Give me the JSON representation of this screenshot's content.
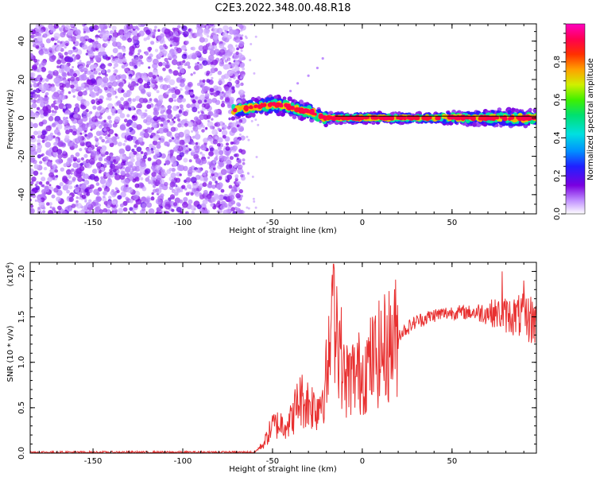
{
  "title": "C2E3.2022.348.00.48.R18",
  "chart_data": [
    {
      "type": "heatmap",
      "title": "C2E3.2022.348.00.48.R18",
      "xlabel": "Height of straight line (km)",
      "ylabel": "Frequency (Hz)",
      "xlim": [
        -185,
        97
      ],
      "ylim": [
        -50,
        49
      ],
      "xticks": [
        -150,
        -100,
        -50,
        0,
        50
      ],
      "yticks": [
        -40,
        -20,
        0,
        20,
        40
      ],
      "noise_region_x": [
        -185,
        -70
      ],
      "signal_track": [
        {
          "x": -72,
          "y": 4
        },
        {
          "x": -65,
          "y": 5
        },
        {
          "x": -58,
          "y": 6
        },
        {
          "x": -50,
          "y": 7
        },
        {
          "x": -42,
          "y": 6
        },
        {
          "x": -35,
          "y": 4
        },
        {
          "x": -28,
          "y": 3
        },
        {
          "x": -22,
          "y": 0
        },
        {
          "x": -15,
          "y": 0
        },
        {
          "x": 0,
          "y": 0
        },
        {
          "x": 25,
          "y": 0
        },
        {
          "x": 50,
          "y": 0
        },
        {
          "x": 75,
          "y": 0
        },
        {
          "x": 97,
          "y": 0
        }
      ],
      "colorbar": {
        "label": "Normalized spectral amplitude",
        "range": [
          0,
          1
        ],
        "ticks": [
          "0.0",
          "0.2",
          "0.4",
          "0.6",
          "0.8"
        ]
      }
    },
    {
      "type": "line",
      "xlabel": "Height of straight line (km)",
      "ylabel": "SNR (10 * v/v)",
      "scale_label": "(x10",
      "scale_exp": "4",
      "scale_close": ")",
      "xlim": [
        -185,
        97
      ],
      "ylim": [
        0,
        2.1
      ],
      "xticks": [
        -150,
        -100,
        -50,
        0,
        50
      ],
      "yticks": [
        "0.0",
        "0.5",
        "1.0",
        "1.5",
        "2.0"
      ],
      "color": "#e83030",
      "envelope": [
        {
          "x": -185,
          "y": 0.01
        },
        {
          "x": -60,
          "y": 0.01
        },
        {
          "x": -55,
          "y": 0.1
        },
        {
          "x": -50,
          "y": 0.3
        },
        {
          "x": -40,
          "y": 0.35
        },
        {
          "x": -35,
          "y": 0.6
        },
        {
          "x": -25,
          "y": 0.5
        },
        {
          "x": -20,
          "y": 0.8
        },
        {
          "x": -15,
          "y": 1.6
        },
        {
          "x": -10,
          "y": 0.8
        },
        {
          "x": 0,
          "y": 0.9
        },
        {
          "x": 10,
          "y": 1.1
        },
        {
          "x": 20,
          "y": 1.3
        },
        {
          "x": 30,
          "y": 1.45
        },
        {
          "x": 40,
          "y": 1.52
        },
        {
          "x": 50,
          "y": 1.55
        },
        {
          "x": 60,
          "y": 1.55
        },
        {
          "x": 70,
          "y": 1.55
        },
        {
          "x": 80,
          "y": 1.52
        },
        {
          "x": 90,
          "y": 1.5
        },
        {
          "x": 97,
          "y": 1.45
        }
      ],
      "peaks": [
        {
          "x": -16,
          "y": 2.08
        },
        {
          "x": -20,
          "y": 1.25
        },
        {
          "x": 78,
          "y": 2.0
        },
        {
          "x": 90,
          "y": 1.9
        }
      ]
    }
  ]
}
